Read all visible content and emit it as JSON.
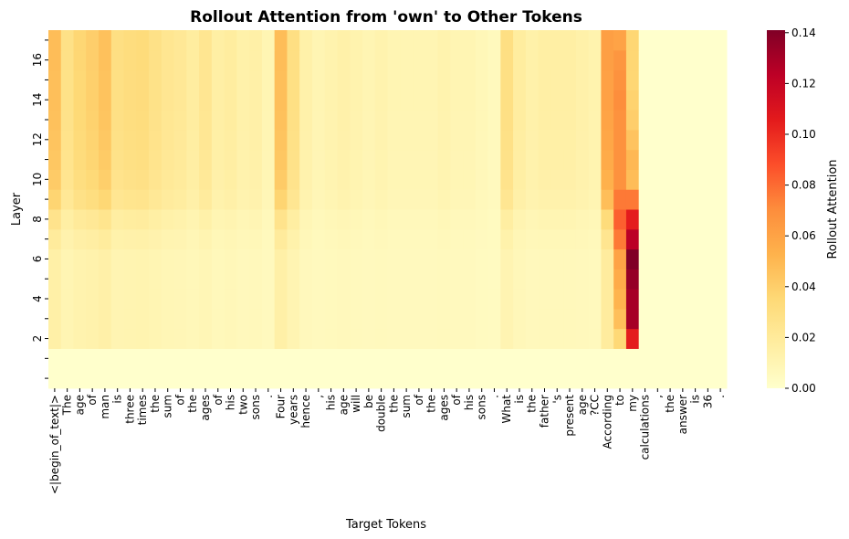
{
  "chart_data": {
    "type": "heatmap",
    "title": "Rollout Attention from 'own' to Other Tokens",
    "xlabel": "Target Tokens",
    "ylabel": "Layer",
    "colorbar_label": "Rollout Attention",
    "colorbar_ticks": [
      "0.00",
      "0.02",
      "0.04",
      "0.06",
      "0.08",
      "0.10",
      "0.12",
      "0.14"
    ],
    "colorbar_range": [
      0,
      0.141
    ],
    "colormap": [
      "#ffffcc",
      "#ffeda0",
      "#fed976",
      "#feb24c",
      "#fd8d3c",
      "#fc4e2a",
      "#e31a1c",
      "#bd0026",
      "#800026"
    ],
    "x_tokens": [
      "<|begin_of_text|>",
      "The",
      "age",
      "of",
      "man",
      "is",
      "three",
      "times",
      "the",
      "sum",
      "of",
      "the",
      "ages",
      "of",
      "his",
      "two",
      "sons",
      ".",
      "Four",
      "years",
      "hence",
      ",",
      "his",
      "age",
      "will",
      "be",
      "double",
      "the",
      "sum",
      "of",
      "the",
      "ages",
      "of",
      "his",
      "sons",
      ".",
      "What",
      "is",
      "the",
      "father",
      "'s",
      "present",
      "age",
      "?CC",
      "According",
      "to",
      "my",
      "calculations",
      ",",
      "the",
      "answer",
      "is",
      "36",
      "."
    ],
    "y_layers": [
      0,
      1,
      2,
      3,
      4,
      5,
      6,
      7,
      8,
      9,
      10,
      11,
      12,
      13,
      14,
      15,
      16,
      17
    ],
    "y_tick_labels": [
      "2",
      "4",
      "6",
      "8",
      "10",
      "12",
      "14",
      "16"
    ],
    "base_weights": [
      0.048,
      0.028,
      0.036,
      0.04,
      0.046,
      0.03,
      0.032,
      0.033,
      0.028,
      0.024,
      0.022,
      0.018,
      0.024,
      0.016,
      0.018,
      0.014,
      0.015,
      0.01,
      0.048,
      0.03,
      0.014,
      0.01,
      0.012,
      0.014,
      0.012,
      0.01,
      0.012,
      0.01,
      0.01,
      0.01,
      0.01,
      0.012,
      0.01,
      0.01,
      0.008,
      0.006,
      0.03,
      0.018,
      0.014,
      0.016,
      0.016,
      0.016,
      0.014,
      0.012,
      0.062,
      0.045,
      0.0,
      0.0,
      0.0,
      0.0,
      0.0,
      0.0,
      0.0,
      0.0
    ],
    "layer_scale": [
      0.0,
      0.0,
      0.25,
      0.25,
      0.25,
      0.25,
      0.25,
      0.35,
      0.5,
      0.75,
      0.85,
      0.9,
      0.93,
      0.96,
      0.98,
      0.98,
      1.0,
      1.0
    ],
    "to_column": [
      0.0,
      0.0,
      0.035,
      0.047,
      0.052,
      0.056,
      0.06,
      0.076,
      0.083,
      0.076,
      0.068,
      0.068,
      0.068,
      0.068,
      0.07,
      0.068,
      0.066,
      0.06
    ],
    "my_column": [
      0.0,
      0.0,
      0.105,
      0.13,
      0.13,
      0.135,
      0.141,
      0.124,
      0.105,
      0.076,
      0.048,
      0.05,
      0.045,
      0.04,
      0.038,
      0.036,
      0.036,
      0.036
    ]
  }
}
